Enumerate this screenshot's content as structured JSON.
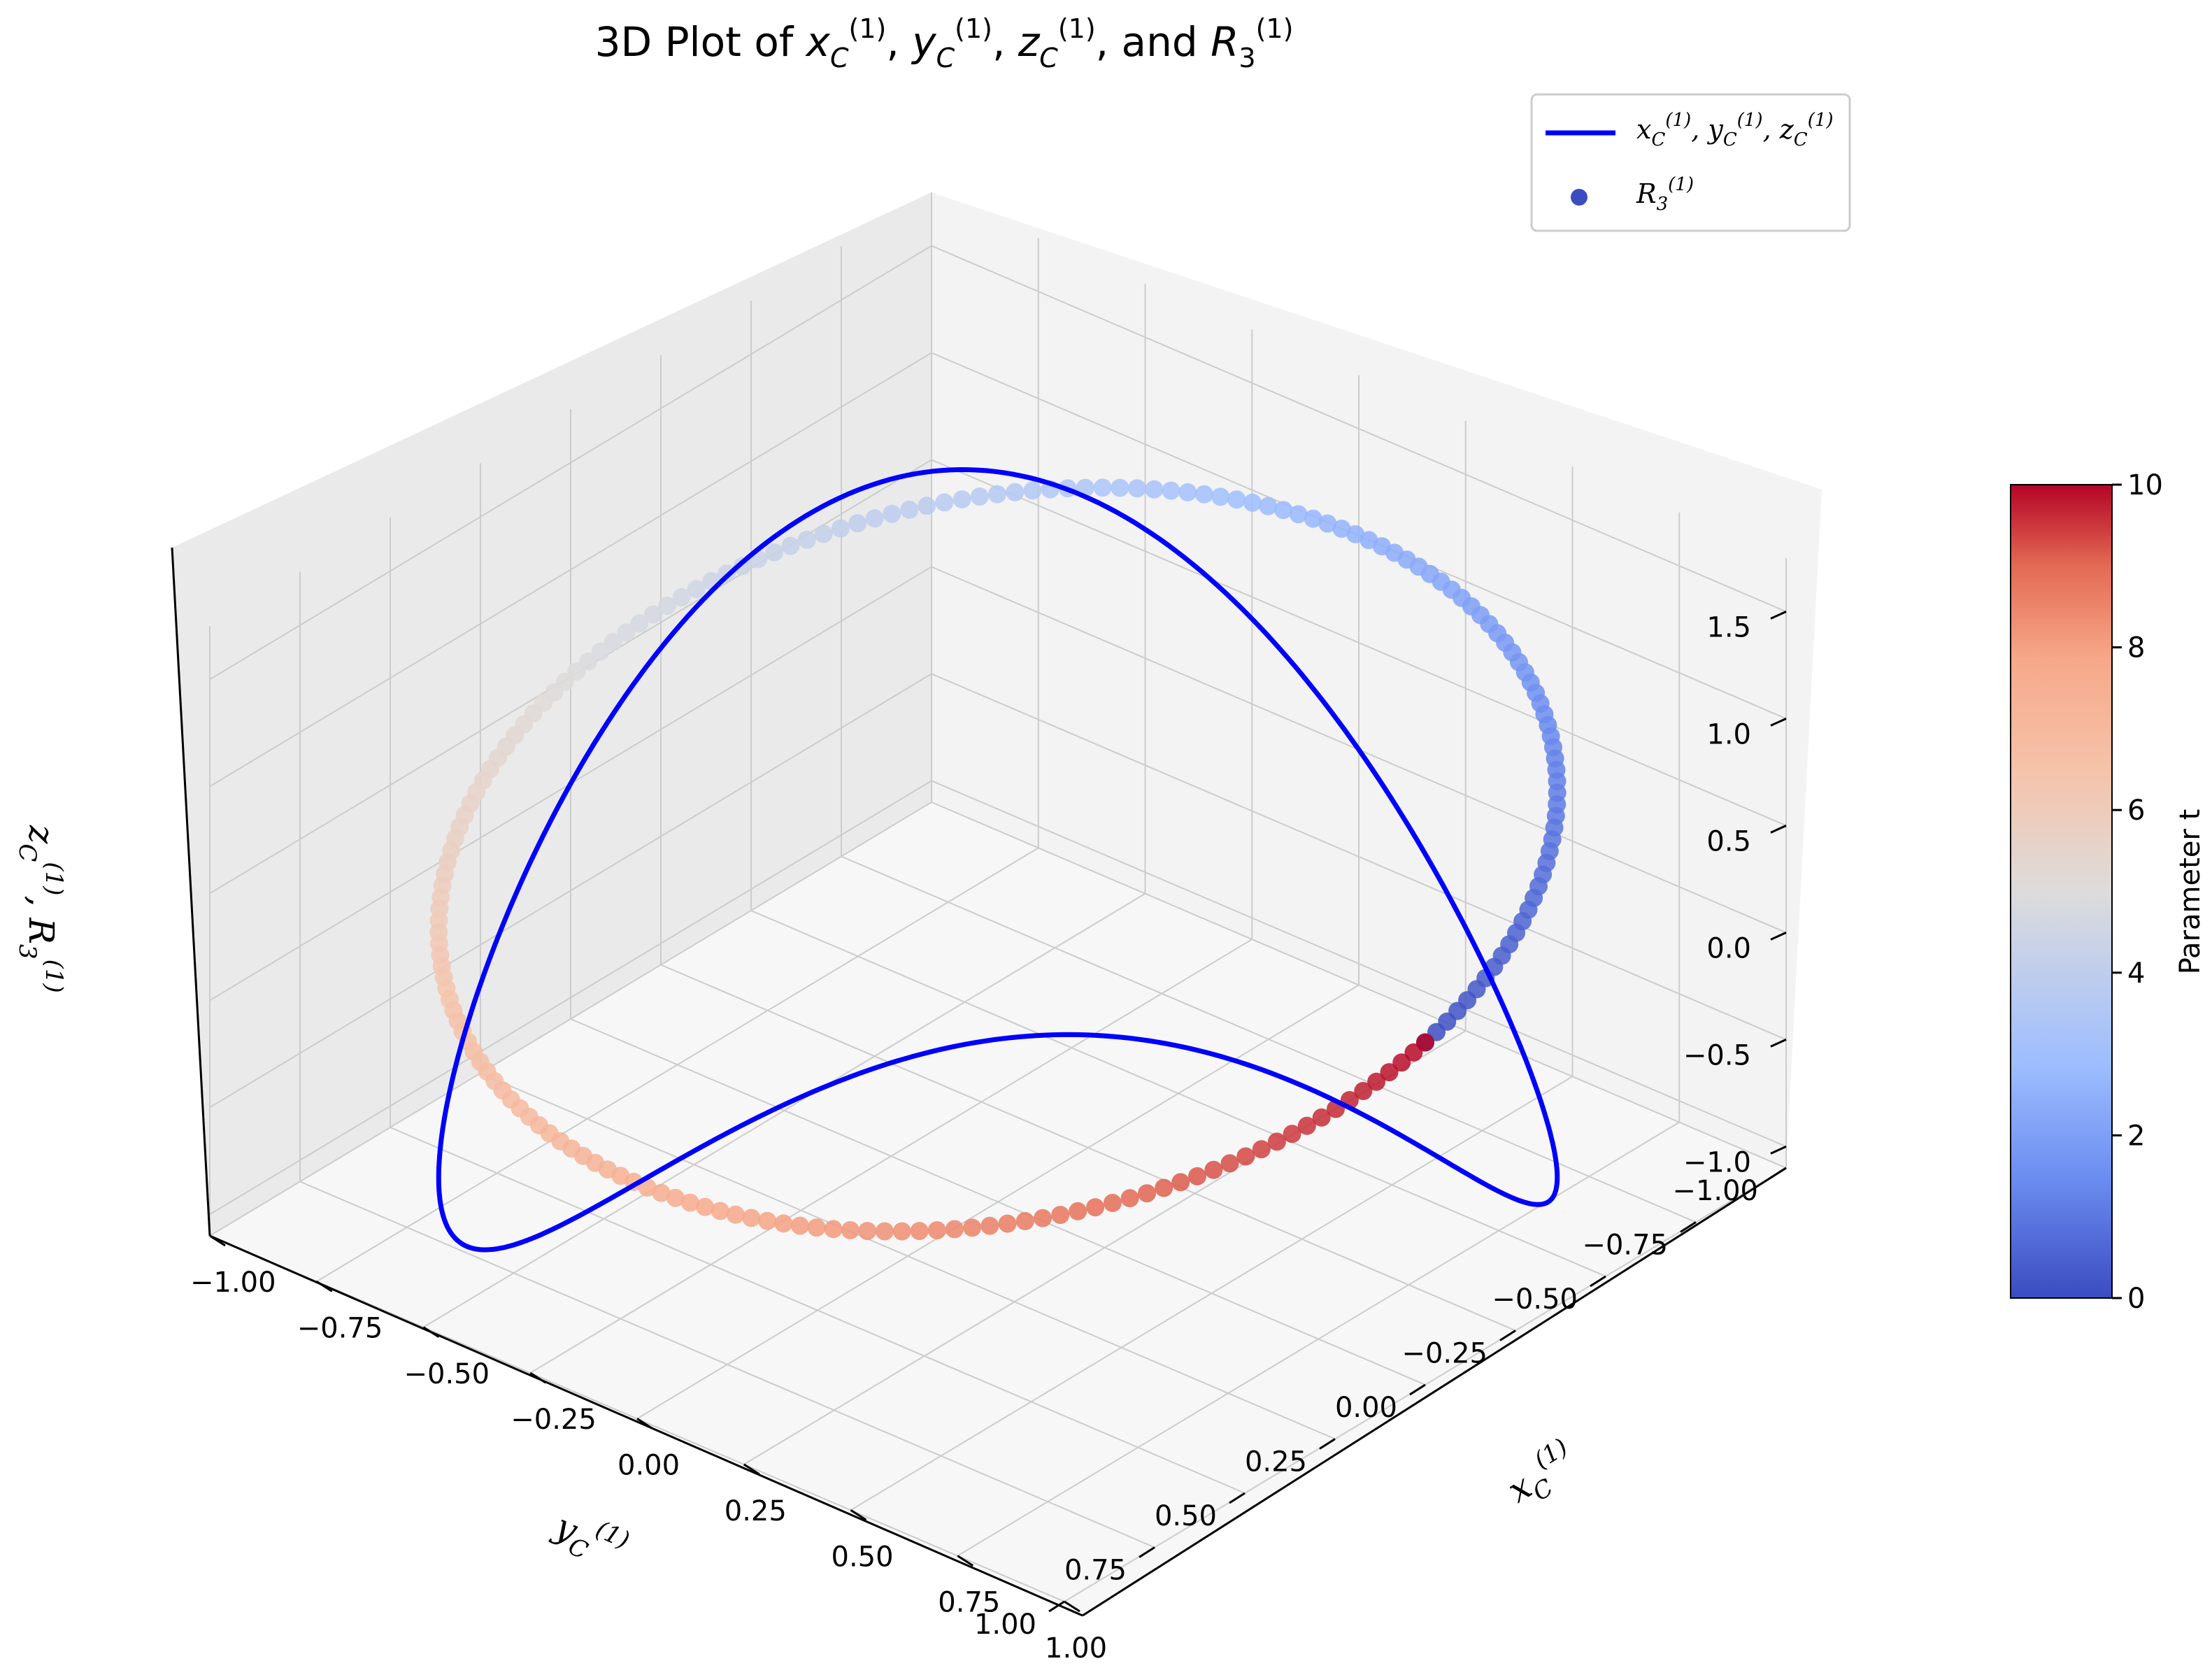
{
  "chart_data": {
    "type": "scatter",
    "title": "3D Plot of x_C^(1), y_C^(1), z_C^(1), and R_3^(1)",
    "title_parts": {
      "prefix": "3D Plot of ",
      "sep1": ", ",
      "sep2": ", ",
      "sep3": ", and ",
      "x": "x",
      "y": "y",
      "z": "z",
      "r": "R",
      "sub_c": "C",
      "sub_3": "3",
      "sup": "(1)"
    },
    "x_axis": {
      "label": "x_C^(1)",
      "range": [
        -1.0,
        1.0
      ],
      "ticks": [
        -1.0,
        -0.75,
        -0.5,
        -0.25,
        0.0,
        0.25,
        0.5,
        0.75,
        1.0
      ],
      "tick_labels": [
        "−1.00",
        "−0.75",
        "−0.50",
        "−0.25",
        "0.00",
        "0.25",
        "0.50",
        "0.75",
        "1.00"
      ]
    },
    "y_axis": {
      "label": "y_C^(1)",
      "range": [
        -1.0,
        1.0
      ],
      "ticks": [
        -1.0,
        -0.75,
        -0.5,
        -0.25,
        0.0,
        0.25,
        0.5,
        0.75,
        1.0
      ],
      "tick_labels": [
        "−1.00",
        "−0.75",
        "−0.50",
        "−0.25",
        "0.00",
        "0.25",
        "0.50",
        "0.75",
        "1.00"
      ]
    },
    "z_axis": {
      "label": "z_C^(1), R_3^(1)",
      "range": [
        -1.1,
        1.75
      ],
      "ticks": [
        -1.0,
        -0.5,
        0.0,
        0.5,
        1.0,
        1.5
      ],
      "tick_labels": [
        "−1.0",
        "−0.5",
        "0.0",
        "0.5",
        "1.0",
        "1.5"
      ]
    },
    "grid": true,
    "legend_position": "top-right",
    "colors": {
      "curve": "#0000ff",
      "legend_marker": "#3b4cc0",
      "pane_left": "#eaeaea",
      "pane_right": "#f3f3f3",
      "pane_floor": "#f7f7f7",
      "gridline": "#cccccc",
      "colormap": [
        "#3b4cc0",
        "#6a8bef",
        "#9dbdff",
        "#c9d7f0",
        "#edd1c2",
        "#f7a889",
        "#e36a53",
        "#b40426"
      ]
    },
    "series": [
      {
        "name": "x_C^(1), y_C^(1), z_C^(1)",
        "kind": "line",
        "parametric": {
          "t_min": 0,
          "t_max": 6.2832,
          "x": "sin(t)",
          "y": "cos(t)",
          "z": "sin(2t)"
        }
      },
      {
        "name": "R_3^(1)",
        "kind": "scatter",
        "count": 200,
        "parametric": {
          "t_min": 0,
          "t_max": 10,
          "x": "cos(2πt/10)",
          "y": "-sin(2πt/10)",
          "z": "0.5 + 0.5·sin(2πt/10)"
        }
      }
    ],
    "colorbar": {
      "label": "Parameter t",
      "range": [
        0,
        10
      ],
      "ticks": [
        0,
        2,
        4,
        6,
        8,
        10
      ],
      "tick_labels": [
        "0",
        "2",
        "4",
        "6",
        "8",
        "10"
      ],
      "colormap": "coolwarm"
    },
    "legend": [
      {
        "label": "x_C^(1), y_C^(1), z_C^(1)",
        "marker": "line"
      },
      {
        "label": "R_3^(1)",
        "marker": "dot"
      }
    ]
  }
}
